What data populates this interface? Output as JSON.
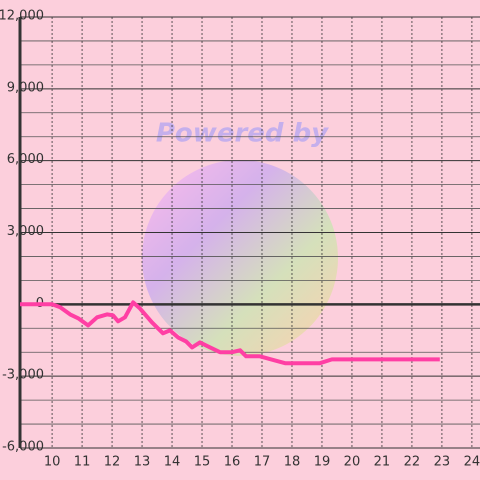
{
  "chart_data": {
    "type": "line",
    "watermark": "Powered by",
    "x": [
      8.93,
      10,
      10.27,
      10.6,
      10.87,
      11.2,
      11.5,
      11.83,
      12.03,
      12.2,
      12.43,
      12.7,
      12.93,
      13.33,
      13.7,
      13.93,
      14.2,
      14.47,
      14.67,
      14.93,
      15.27,
      15.6,
      16.0,
      16.27,
      16.47,
      16.93,
      17.43,
      17.77,
      18.93,
      19.33,
      22.93
    ],
    "series": [
      {
        "color": "#ff3fa4",
        "values": [
          0,
          0,
          -125,
          -420,
          -585,
          -880,
          -540,
          -420,
          -460,
          -710,
          -540,
          80,
          -170,
          -750,
          -1210,
          -1090,
          -1380,
          -1550,
          -1800,
          -1590,
          -1800,
          -2000,
          -2000,
          -1920,
          -2170,
          -2170,
          -2340,
          -2460,
          -2460,
          -2300,
          -2300
        ]
      }
    ],
    "xlim": [
      8.93,
      24.27
    ],
    "ylim": [
      -6000,
      12000
    ],
    "xticks": [
      10,
      11,
      12,
      13,
      14,
      15,
      16,
      17,
      18,
      19,
      20,
      21,
      22,
      23,
      24
    ],
    "yticks": [
      {
        "value": -6000,
        "label": "-6,000"
      },
      {
        "value": -3000,
        "label": "-3,000"
      },
      0,
      {
        "value": 3000,
        "label": "3,000"
      },
      {
        "value": 6000,
        "label": "6,000"
      },
      {
        "value": 9000,
        "label": "9,000"
      },
      {
        "value": 12000,
        "label": "12,000"
      }
    ],
    "y_minor_ticks": [
      -5000,
      -4000,
      -2000,
      -1000,
      1000,
      2000,
      4000,
      5000,
      7000,
      8000,
      10000,
      11000
    ],
    "grid": true
  }
}
